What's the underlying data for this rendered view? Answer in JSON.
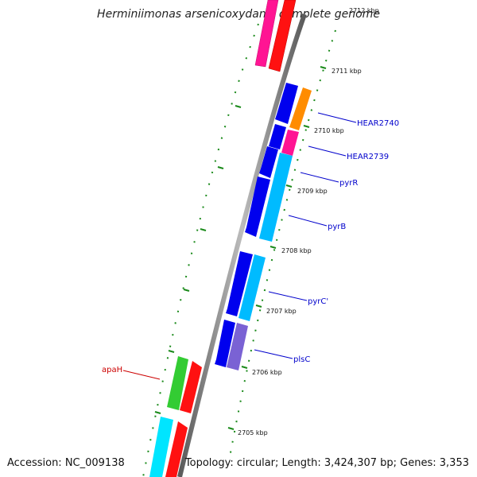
{
  "title": "Herminiimonas arsenicoxydans, complete genome",
  "accession": "Accession: NC_009138",
  "topology": "Topology: circular; Length: 3,424,307 bp; Genes: 3,353",
  "ticks": {
    "partial_top": "2712 kbp",
    "labels": [
      "2711 kbp",
      "2710 kbp",
      "2709 kbp",
      "2708 kbp",
      "2707 kbp",
      "2706 kbp",
      "2705 kbp"
    ]
  },
  "gene_labels": [
    {
      "text": "HEAR2740",
      "color": "#0000cc"
    },
    {
      "text": "HEAR2739",
      "color": "#0000cc"
    },
    {
      "text": "pyrR",
      "color": "#0000cc"
    },
    {
      "text": "pyrB",
      "color": "#0000cc"
    },
    {
      "text": "pyrC'",
      "color": "#0000cc"
    },
    {
      "text": "plsC",
      "color": "#0000cc"
    },
    {
      "text": "apaH",
      "color": "#cc0000"
    }
  ],
  "colors": {
    "backbone": "#8a8a8a",
    "tick": "#1a8a1a",
    "blue": "#0000ee",
    "cyan": "#00bbff",
    "magenta": "#ff1493",
    "red": "#ff1111",
    "orange": "#ff8c00",
    "green": "#33cc33",
    "lavender": "#7a62d4",
    "cyan_bright": "#00e5ff"
  }
}
